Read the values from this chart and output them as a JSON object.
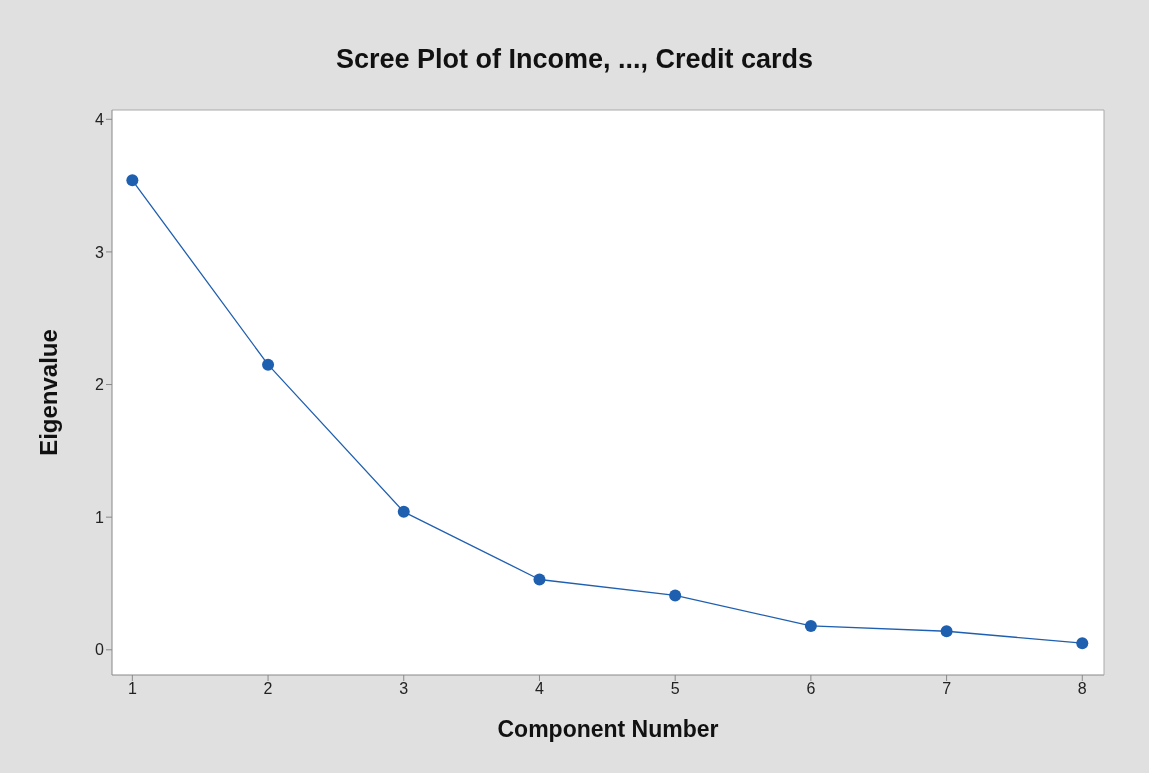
{
  "chart_data": {
    "type": "line",
    "title": "Scree Plot of Income, ..., Credit cards",
    "xlabel": "Component Number",
    "ylabel": "Eigenvalue",
    "x": [
      1,
      2,
      3,
      4,
      5,
      6,
      7,
      8
    ],
    "series": [
      {
        "color": "#1f5fb0",
        "values": [
          3.54,
          2.15,
          1.04,
          0.53,
          0.41,
          0.18,
          0.14,
          0.05
        ]
      }
    ],
    "xlim": [
      0.85,
      8.16
    ],
    "xticks": [
      1,
      2,
      3,
      4,
      5,
      6,
      7,
      8
    ],
    "ylim": [
      -0.19,
      4.07
    ],
    "yticks": [
      0,
      1,
      2,
      3,
      4
    ],
    "marker": "circle",
    "line_style": "solid",
    "grid": false
  }
}
